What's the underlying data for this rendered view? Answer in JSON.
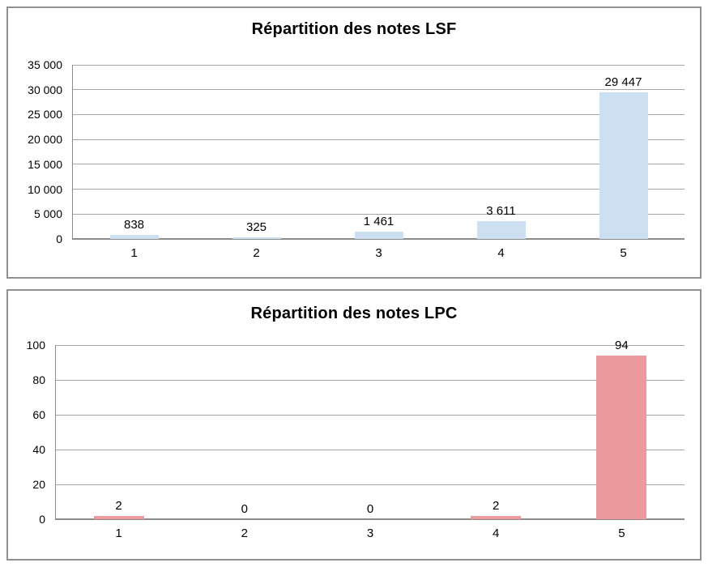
{
  "page": {
    "background": "#ffffff"
  },
  "colors": {
    "grid_line": "#a6a6a6",
    "axis_line": "#8c8c8c",
    "panel_border": "#919191",
    "text": "#000000",
    "lsf_bar": "#cde0f2",
    "lpc_bar": "#ec9a9e"
  },
  "chart_data": [
    {
      "type": "bar",
      "title": "Répartition des notes LSF",
      "categories": [
        "1",
        "2",
        "3",
        "4",
        "5"
      ],
      "values": [
        838,
        325,
        1461,
        3611,
        29447
      ],
      "value_labels": [
        "838",
        "325",
        "1 461",
        "3 611",
        "29 447"
      ],
      "xlabel": "",
      "ylabel": "",
      "ylim": [
        0,
        35000
      ],
      "ytick_values": [
        0,
        5000,
        10000,
        15000,
        20000,
        25000,
        30000,
        35000
      ],
      "ytick_labels": [
        "0",
        "5 000",
        "10 000",
        "15 000",
        "20 000",
        "25 000",
        "30 000",
        "35 000"
      ],
      "grid": true,
      "legend": "none",
      "bar_color": "#cde0f2"
    },
    {
      "type": "bar",
      "title": "Répartition des notes LPC",
      "categories": [
        "1",
        "2",
        "3",
        "4",
        "5"
      ],
      "values": [
        2,
        0,
        0,
        2,
        94
      ],
      "value_labels": [
        "2",
        "0",
        "0",
        "2",
        "94"
      ],
      "xlabel": "",
      "ylabel": "",
      "ylim": [
        0,
        100
      ],
      "ytick_values": [
        0,
        20,
        40,
        60,
        80,
        100
      ],
      "ytick_labels": [
        "0",
        "20",
        "40",
        "60",
        "80",
        "100"
      ],
      "grid": true,
      "legend": "none",
      "bar_color": "#ec9a9e"
    }
  ]
}
